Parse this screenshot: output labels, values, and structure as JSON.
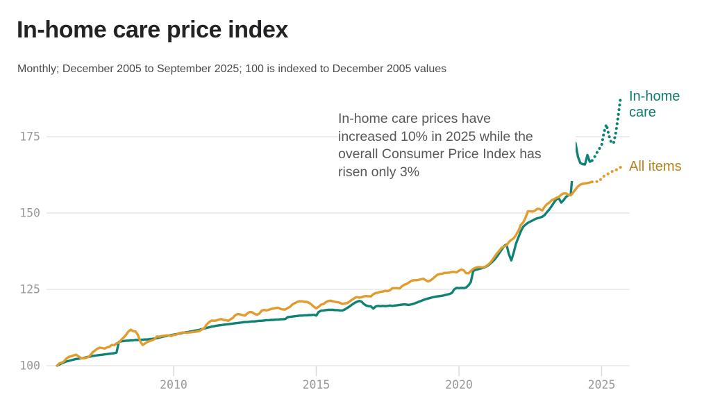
{
  "page": {
    "title": "In-home care price index",
    "subtitle": "Monthly; December 2005 to September 2025; 100 is indexed to December 2005 values"
  },
  "annotation": {
    "lines": [
      "In-home care prices have",
      "increased 10% in 2025 while the",
      "overall Consumer Price Index has",
      "risen only 3%"
    ]
  },
  "legend": {
    "in_home_care": {
      "lines": [
        "In-home",
        "care"
      ]
    },
    "all_items": {
      "label": "All items"
    }
  },
  "colors": {
    "in_home_care_line": "#0f8274",
    "in_home_care_label": "#0e7a6d",
    "all_items_line": "#e09c2d",
    "all_items_label": "#b8821b",
    "grid": "#e6e6e3",
    "tick": "#d8d8d6",
    "tick_text": "#98989a",
    "title_text": "#222325",
    "subtitle_text": "#4b4b4d",
    "annotation_text": "#58585a",
    "background": "#ffffff"
  },
  "chart_data": {
    "type": "line",
    "title": "In-home care price index",
    "frequency": "monthly",
    "x_start": "2005-12",
    "x_end": "2025-09",
    "index_base": "December 2005 = 100",
    "grid": "horizontal",
    "legend_position": "right-of-line-ends",
    "x_tick_years": [
      2010,
      2015,
      2020,
      2025
    ],
    "y_ticks": [
      100,
      125,
      150,
      175
    ],
    "ylim": [
      97,
      190
    ],
    "dotted_tail_start": "2024-10",
    "dotted_from_index": 225,
    "series": [
      {
        "name": "In-home care",
        "color_key": "in_home_care_line",
        "values": [
          100.0,
          100.4,
          100.8,
          101.1,
          101.4,
          101.6,
          101.8,
          102.0,
          102.2,
          102.3,
          102.4,
          102.5,
          102.7,
          102.9,
          103.0,
          103.2,
          103.3,
          103.4,
          103.5,
          103.6,
          103.7,
          103.8,
          103.9,
          104.0,
          104.1,
          104.3,
          107.8,
          108.0,
          108.1,
          108.2,
          108.2,
          108.3,
          108.3,
          108.4,
          108.4,
          108.5,
          108.5,
          108.6,
          108.6,
          108.7,
          108.8,
          108.9,
          109.0,
          109.2,
          109.4,
          109.6,
          109.7,
          109.9,
          110.0,
          110.2,
          110.3,
          110.5,
          110.6,
          110.8,
          110.9,
          111.0,
          111.2,
          111.3,
          111.5,
          111.6,
          111.8,
          112.0,
          112.2,
          112.4,
          112.6,
          112.8,
          112.9,
          113.1,
          113.2,
          113.3,
          113.4,
          113.5,
          113.6,
          113.7,
          113.8,
          113.9,
          114.0,
          114.1,
          114.2,
          114.3,
          114.3,
          114.4,
          114.5,
          114.5,
          114.6,
          114.7,
          114.7,
          114.8,
          114.9,
          114.9,
          115.0,
          115.0,
          115.1,
          115.1,
          115.2,
          115.2,
          115.3,
          115.9,
          116.0,
          116.1,
          116.2,
          116.3,
          116.4,
          116.4,
          116.5,
          116.5,
          116.6,
          116.6,
          116.7,
          116.4,
          117.6,
          118.0,
          118.1,
          118.2,
          118.3,
          118.3,
          118.3,
          118.2,
          118.2,
          118.1,
          118.1,
          118.4,
          118.9,
          119.4,
          120.0,
          120.5,
          120.9,
          121.2,
          121.0,
          120.2,
          119.7,
          119.5,
          119.4,
          118.7,
          119.4,
          119.6,
          119.5,
          119.6,
          119.5,
          119.6,
          119.7,
          119.6,
          119.7,
          119.8,
          119.9,
          120.0,
          120.1,
          120.0,
          119.9,
          120.1,
          120.3,
          120.6,
          120.9,
          121.2,
          121.5,
          121.8,
          122.0,
          122.2,
          122.4,
          122.6,
          122.7,
          122.8,
          122.9,
          123.1,
          123.3,
          123.5,
          123.8,
          125.0,
          125.5,
          125.4,
          125.5,
          125.4,
          125.6,
          126.3,
          127.4,
          131.0,
          131.4,
          131.6,
          131.8,
          132.0,
          132.3,
          132.7,
          133.3,
          134.0,
          134.8,
          135.8,
          136.9,
          138.1,
          139.2,
          139.7,
          136.5,
          134.5,
          137.0,
          140.0,
          142.0,
          144.0,
          145.5,
          146.2,
          146.8,
          147.2,
          147.6,
          148.0,
          148.3,
          148.5,
          148.8,
          149.3,
          150.3,
          151.2,
          152.3,
          153.5,
          154.5,
          154.8,
          153.4,
          154.2,
          155.3,
          155.8,
          156.1,
          165.0,
          173.0,
          168.5,
          166.4,
          166.0,
          165.9,
          169.0,
          166.8,
          167.2,
          168.3,
          169.8,
          171.0,
          172.3,
          176.5,
          179.0,
          175.5,
          173.2,
          172.8,
          176.5,
          182.0,
          188.0
        ]
      },
      {
        "name": "All items",
        "color_key": "all_items_line",
        "values": [
          100.0,
          100.8,
          101.0,
          101.5,
          102.4,
          102.9,
          103.1,
          103.4,
          103.6,
          103.1,
          102.5,
          102.4,
          102.5,
          102.8,
          103.4,
          104.4,
          105.0,
          105.6,
          105.9,
          105.8,
          105.6,
          106.0,
          106.2,
          106.8,
          106.7,
          107.3,
          107.6,
          108.5,
          109.2,
          110.1,
          111.2,
          111.8,
          111.3,
          111.2,
          110.1,
          107.9,
          106.8,
          107.3,
          107.8,
          108.1,
          108.3,
          108.7,
          109.6,
          109.5,
          109.7,
          109.8,
          109.9,
          109.9,
          109.7,
          110.1,
          110.1,
          110.6,
          110.8,
          110.9,
          110.8,
          110.8,
          110.9,
          111.0,
          111.1,
          111.2,
          111.4,
          111.9,
          112.4,
          113.6,
          114.3,
          114.8,
          114.7,
          114.8,
          115.1,
          115.3,
          115.0,
          114.9,
          114.7,
          115.2,
          115.7,
          116.6,
          116.9,
          116.8,
          116.6,
          116.4,
          117.1,
          117.6,
          117.5,
          117.0,
          116.7,
          117.0,
          118.0,
          118.3,
          118.1,
          118.3,
          118.6,
          118.7,
          118.9,
          119.0,
          118.6,
          118.4,
          118.4,
          118.9,
          119.3,
          120.1,
          120.5,
          120.9,
          121.1,
          121.1,
          120.9,
          120.9,
          120.6,
          120.0,
          119.3,
          118.8,
          119.3,
          120.0,
          120.2,
          120.8,
          121.2,
          121.3,
          121.1,
          120.9,
          120.8,
          120.6,
          120.2,
          120.4,
          120.5,
          121.0,
          121.6,
          122.1,
          122.5,
          122.3,
          122.4,
          122.7,
          122.8,
          122.7,
          122.7,
          123.4,
          123.8,
          123.9,
          124.2,
          124.3,
          124.5,
          124.4,
          124.7,
          125.4,
          125.4,
          125.4,
          125.3,
          126.0,
          126.5,
          126.8,
          127.3,
          127.8,
          128.0,
          128.0,
          128.1,
          128.3,
          128.5,
          128.0,
          127.6,
          127.9,
          128.5,
          129.2,
          129.8,
          130.1,
          130.1,
          130.4,
          130.4,
          130.5,
          130.7,
          130.7,
          130.6,
          131.1,
          131.5,
          131.2,
          130.3,
          130.3,
          131.0,
          131.7,
          132.1,
          132.3,
          132.3,
          132.2,
          132.4,
          132.9,
          133.6,
          134.6,
          135.7,
          136.8,
          137.7,
          138.7,
          139.0,
          139.4,
          140.5,
          141.2,
          141.7,
          142.8,
          144.2,
          146.1,
          146.9,
          148.5,
          150.6,
          150.6,
          150.5,
          150.8,
          151.4,
          151.3,
          150.8,
          152.0,
          152.9,
          153.4,
          154.2,
          154.5,
          155.0,
          155.3,
          156.0,
          156.4,
          156.4,
          156.0,
          155.8,
          156.7,
          157.7,
          158.7,
          159.3,
          159.6,
          159.7,
          159.8,
          160.0,
          160.2,
          160.4,
          160.3,
          160.4,
          161.4,
          162.1,
          162.5,
          163.0,
          163.4,
          163.9,
          164.1,
          164.6,
          165.0
        ]
      }
    ]
  }
}
